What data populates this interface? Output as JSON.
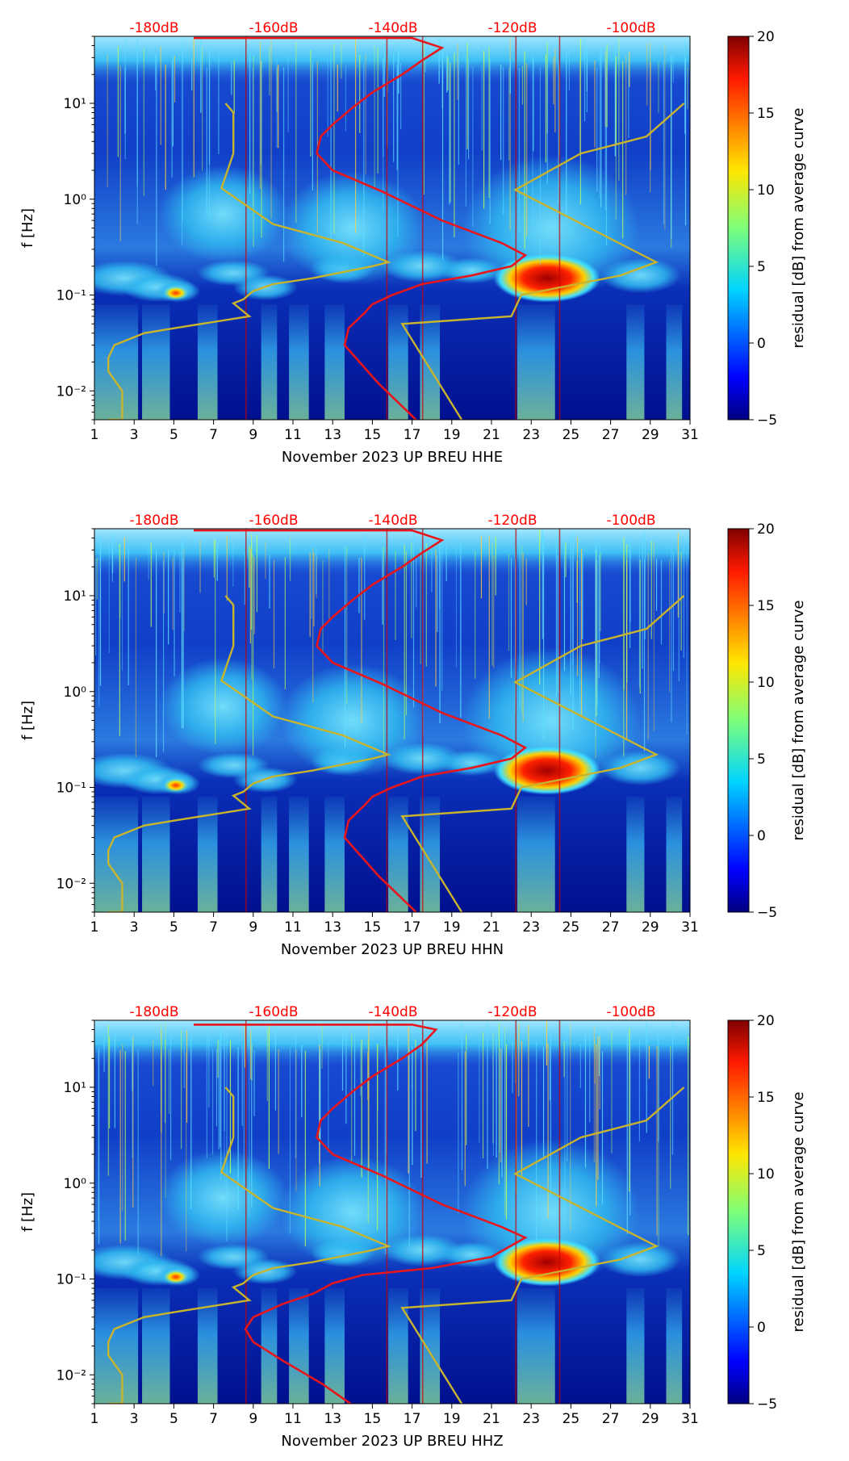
{
  "chart_data": [
    {
      "type": "heatmap",
      "title": "",
      "xlabel": "November 2023 UP BREU  HHE",
      "ylabel": "f [Hz]",
      "x_ticks": [
        "1",
        "3",
        "5",
        "7",
        "9",
        "11",
        "13",
        "15",
        "17",
        "19",
        "21",
        "23",
        "25",
        "27",
        "29",
        "31"
      ],
      "y_ticks": [
        "10⁻²",
        "10⁻¹",
        "10⁰",
        "10¹"
      ],
      "y_tick_values": [
        0.01,
        0.1,
        1,
        10
      ],
      "ylim": [
        0.005,
        50
      ],
      "xlim": [
        1,
        31
      ],
      "top_db_labels": [
        "-180dB",
        "-160dB",
        "-140dB",
        "-120dB",
        "-100dB"
      ],
      "colorbar": {
        "label": "residual [dB] from average curve",
        "ticks": [
          "−5",
          "0",
          "5",
          "10",
          "15",
          "20"
        ],
        "range": [
          -5,
          20
        ]
      },
      "colors": {
        "noise_model": "#c8b42d",
        "average_curve": "#e8161b",
        "label_red": "#ff0000"
      }
    },
    {
      "type": "heatmap",
      "title": "",
      "xlabel": "November 2023 UP BREU  HHN",
      "ylabel": "f [Hz]",
      "x_ticks": [
        "1",
        "3",
        "5",
        "7",
        "9",
        "11",
        "13",
        "15",
        "17",
        "19",
        "21",
        "23",
        "25",
        "27",
        "29",
        "31"
      ],
      "y_ticks": [
        "10⁻²",
        "10⁻¹",
        "10⁰",
        "10¹"
      ],
      "y_tick_values": [
        0.01,
        0.1,
        1,
        10
      ],
      "ylim": [
        0.005,
        50
      ],
      "xlim": [
        1,
        31
      ],
      "top_db_labels": [
        "-180dB",
        "-160dB",
        "-140dB",
        "-120dB",
        "-100dB"
      ],
      "colorbar": {
        "label": "residual [dB] from average curve",
        "ticks": [
          "−5",
          "0",
          "5",
          "10",
          "15",
          "20"
        ],
        "range": [
          -5,
          20
        ]
      },
      "colors": {
        "noise_model": "#c8b42d",
        "average_curve": "#e8161b",
        "label_red": "#ff0000"
      }
    },
    {
      "type": "heatmap",
      "title": "",
      "xlabel": "November 2023 UP BREU  HHZ",
      "ylabel": "f [Hz]",
      "x_ticks": [
        "1",
        "3",
        "5",
        "7",
        "9",
        "11",
        "13",
        "15",
        "17",
        "19",
        "21",
        "23",
        "25",
        "27",
        "29",
        "31"
      ],
      "y_ticks": [
        "10⁻²",
        "10⁻¹",
        "10⁰",
        "10¹"
      ],
      "y_tick_values": [
        0.01,
        0.1,
        1,
        10
      ],
      "ylim": [
        0.005,
        50
      ],
      "xlim": [
        1,
        31
      ],
      "top_db_labels": [
        "-180dB",
        "-160dB",
        "-140dB",
        "-120dB",
        "-100dB"
      ],
      "colorbar": {
        "label": "residual [dB] from average curve",
        "ticks": [
          "−5",
          "0",
          "5",
          "10",
          "15",
          "20"
        ],
        "range": [
          -5,
          20
        ]
      },
      "colors": {
        "noise_model": "#c8b42d",
        "average_curve": "#e8161b",
        "label_red": "#ff0000"
      }
    }
  ]
}
